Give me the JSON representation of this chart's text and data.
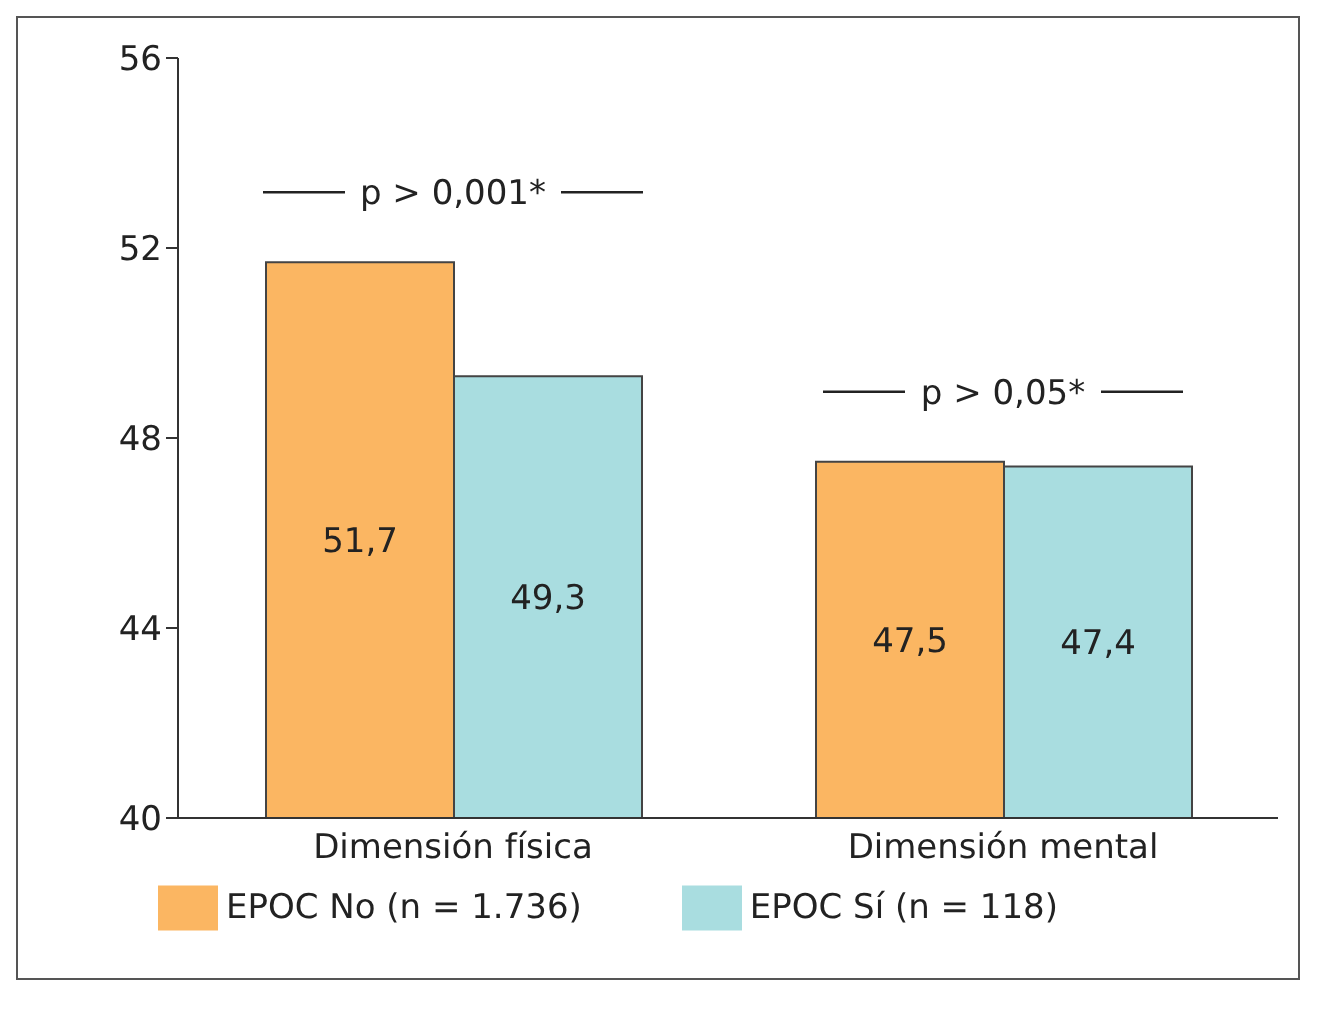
{
  "chart_data": {
    "type": "bar",
    "categories": [
      "Dimensión física",
      "Dimensión mental"
    ],
    "series": [
      {
        "name": "EPOC No (n = 1.736)",
        "color": "#fbb662",
        "values": [
          51.7,
          47.5
        ],
        "value_labels": [
          "51,7",
          "47,5"
        ]
      },
      {
        "name": "EPOC Sí (n = 118)",
        "color": "#a9dde0",
        "values": [
          49.3,
          47.4
        ],
        "value_labels": [
          "49,3",
          "47,4"
        ]
      }
    ],
    "ylim": [
      40,
      56
    ],
    "yticks": [
      40,
      44,
      48,
      52,
      56
    ],
    "grid": false,
    "legend": "bottom",
    "annotations": [
      "p > 0,001*",
      "p > 0,05*"
    ]
  }
}
